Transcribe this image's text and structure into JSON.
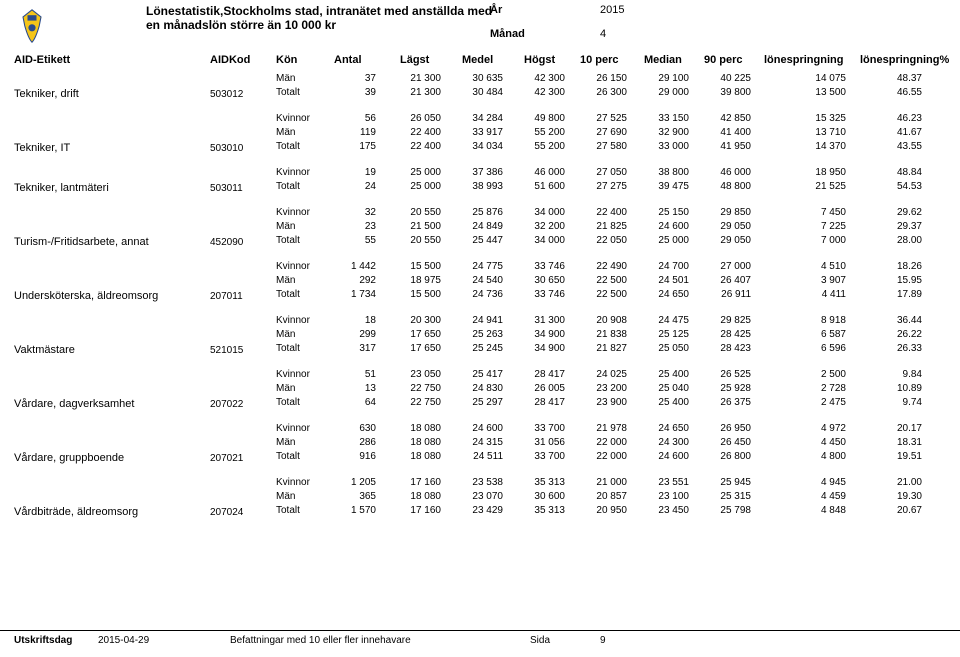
{
  "header": {
    "title_line1": "Lönestatistik,Stockholms stad, intranätet med anställda med",
    "title_line2": "en månadslön större än 10 000 kr",
    "year_label": "År",
    "year_value": "2015",
    "month_label": "Månad",
    "month_value": "4"
  },
  "columns": {
    "aid_etikett": "AID-Etikett",
    "aidkod": "AIDKod",
    "kon": "Kön",
    "antal": "Antal",
    "lagst": "Lägst",
    "medel": "Medel",
    "hogst": "Högst",
    "p10": "10 perc",
    "median": "Median",
    "p90": "90 perc",
    "lonespringning": "lönespringning",
    "lonespringning_pct": "lönespringning%"
  },
  "groups": [
    {
      "title": "Tekniker, drift",
      "aidkod": "503012",
      "rows": [
        {
          "kon": "Män",
          "antal": "37",
          "lagst": "21 300",
          "medel": "30 635",
          "hogst": "42 300",
          "p10": "26 150",
          "median": "29 100",
          "p90": "40 225",
          "lonesp": "14 075",
          "pct": "48.37"
        },
        {
          "kon": "Totalt",
          "antal": "39",
          "lagst": "21 300",
          "medel": "30 484",
          "hogst": "42 300",
          "p10": "26 300",
          "median": "29 000",
          "p90": "39 800",
          "lonesp": "13 500",
          "pct": "46.55"
        }
      ]
    },
    {
      "title": "Tekniker, IT",
      "aidkod": "503010",
      "rows": [
        {
          "kon": "Kvinnor",
          "antal": "56",
          "lagst": "26 050",
          "medel": "34 284",
          "hogst": "49 800",
          "p10": "27 525",
          "median": "33 150",
          "p90": "42 850",
          "lonesp": "15 325",
          "pct": "46.23"
        },
        {
          "kon": "Män",
          "antal": "119",
          "lagst": "22 400",
          "medel": "33 917",
          "hogst": "55 200",
          "p10": "27 690",
          "median": "32 900",
          "p90": "41 400",
          "lonesp": "13 710",
          "pct": "41.67"
        },
        {
          "kon": "Totalt",
          "antal": "175",
          "lagst": "22 400",
          "medel": "34 034",
          "hogst": "55 200",
          "p10": "27 580",
          "median": "33 000",
          "p90": "41 950",
          "lonesp": "14 370",
          "pct": "43.55"
        }
      ]
    },
    {
      "title": "Tekniker, lantmäteri",
      "aidkod": "503011",
      "rows": [
        {
          "kon": "Kvinnor",
          "antal": "19",
          "lagst": "25 000",
          "medel": "37 386",
          "hogst": "46 000",
          "p10": "27 050",
          "median": "38 800",
          "p90": "46 000",
          "lonesp": "18 950",
          "pct": "48.84"
        },
        {
          "kon": "Totalt",
          "antal": "24",
          "lagst": "25 000",
          "medel": "38 993",
          "hogst": "51 600",
          "p10": "27 275",
          "median": "39 475",
          "p90": "48 800",
          "lonesp": "21 525",
          "pct": "54.53"
        }
      ]
    },
    {
      "title": "Turism-/Fritidsarbete, annat",
      "aidkod": "452090",
      "rows": [
        {
          "kon": "Kvinnor",
          "antal": "32",
          "lagst": "20 550",
          "medel": "25 876",
          "hogst": "34 000",
          "p10": "22 400",
          "median": "25 150",
          "p90": "29 850",
          "lonesp": "7 450",
          "pct": "29.62"
        },
        {
          "kon": "Män",
          "antal": "23",
          "lagst": "21 500",
          "medel": "24 849",
          "hogst": "32 200",
          "p10": "21 825",
          "median": "24 600",
          "p90": "29 050",
          "lonesp": "7 225",
          "pct": "29.37"
        },
        {
          "kon": "Totalt",
          "antal": "55",
          "lagst": "20 550",
          "medel": "25 447",
          "hogst": "34 000",
          "p10": "22 050",
          "median": "25 000",
          "p90": "29 050",
          "lonesp": "7 000",
          "pct": "28.00"
        }
      ]
    },
    {
      "title": "Undersköterska, äldreomsorg",
      "aidkod": "207011",
      "rows": [
        {
          "kon": "Kvinnor",
          "antal": "1 442",
          "lagst": "15 500",
          "medel": "24 775",
          "hogst": "33 746",
          "p10": "22 490",
          "median": "24 700",
          "p90": "27 000",
          "lonesp": "4 510",
          "pct": "18.26"
        },
        {
          "kon": "Män",
          "antal": "292",
          "lagst": "18 975",
          "medel": "24 540",
          "hogst": "30 650",
          "p10": "22 500",
          "median": "24 501",
          "p90": "26 407",
          "lonesp": "3 907",
          "pct": "15.95"
        },
        {
          "kon": "Totalt",
          "antal": "1 734",
          "lagst": "15 500",
          "medel": "24 736",
          "hogst": "33 746",
          "p10": "22 500",
          "median": "24 650",
          "p90": "26 911",
          "lonesp": "4 411",
          "pct": "17.89"
        }
      ]
    },
    {
      "title": "Vaktmästare",
      "aidkod": "521015",
      "rows": [
        {
          "kon": "Kvinnor",
          "antal": "18",
          "lagst": "20 300",
          "medel": "24 941",
          "hogst": "31 300",
          "p10": "20 908",
          "median": "24 475",
          "p90": "29 825",
          "lonesp": "8 918",
          "pct": "36.44"
        },
        {
          "kon": "Män",
          "antal": "299",
          "lagst": "17 650",
          "medel": "25 263",
          "hogst": "34 900",
          "p10": "21 838",
          "median": "25 125",
          "p90": "28 425",
          "lonesp": "6 587",
          "pct": "26.22"
        },
        {
          "kon": "Totalt",
          "antal": "317",
          "lagst": "17 650",
          "medel": "25 245",
          "hogst": "34 900",
          "p10": "21 827",
          "median": "25 050",
          "p90": "28 423",
          "lonesp": "6 596",
          "pct": "26.33"
        }
      ]
    },
    {
      "title": "Vårdare, dagverksamhet",
      "aidkod": "207022",
      "rows": [
        {
          "kon": "Kvinnor",
          "antal": "51",
          "lagst": "23 050",
          "medel": "25 417",
          "hogst": "28 417",
          "p10": "24 025",
          "median": "25 400",
          "p90": "26 525",
          "lonesp": "2 500",
          "pct": "9.84"
        },
        {
          "kon": "Män",
          "antal": "13",
          "lagst": "22 750",
          "medel": "24 830",
          "hogst": "26 005",
          "p10": "23 200",
          "median": "25 040",
          "p90": "25 928",
          "lonesp": "2 728",
          "pct": "10.89"
        },
        {
          "kon": "Totalt",
          "antal": "64",
          "lagst": "22 750",
          "medel": "25 297",
          "hogst": "28 417",
          "p10": "23 900",
          "median": "25 400",
          "p90": "26 375",
          "lonesp": "2 475",
          "pct": "9.74"
        }
      ]
    },
    {
      "title": "Vårdare, gruppboende",
      "aidkod": "207021",
      "rows": [
        {
          "kon": "Kvinnor",
          "antal": "630",
          "lagst": "18 080",
          "medel": "24 600",
          "hogst": "33 700",
          "p10": "21 978",
          "median": "24 650",
          "p90": "26 950",
          "lonesp": "4 972",
          "pct": "20.17"
        },
        {
          "kon": "Män",
          "antal": "286",
          "lagst": "18 080",
          "medel": "24 315",
          "hogst": "31 056",
          "p10": "22 000",
          "median": "24 300",
          "p90": "26 450",
          "lonesp": "4 450",
          "pct": "18.31"
        },
        {
          "kon": "Totalt",
          "antal": "916",
          "lagst": "18 080",
          "medel": "24 511",
          "hogst": "33 700",
          "p10": "22 000",
          "median": "24 600",
          "p90": "26 800",
          "lonesp": "4 800",
          "pct": "19.51"
        }
      ]
    },
    {
      "title": "Vårdbiträde, äldreomsorg",
      "aidkod": "207024",
      "rows": [
        {
          "kon": "Kvinnor",
          "antal": "1 205",
          "lagst": "17 160",
          "medel": "23 538",
          "hogst": "35 313",
          "p10": "21 000",
          "median": "23 551",
          "p90": "25 945",
          "lonesp": "4 945",
          "pct": "21.00"
        },
        {
          "kon": "Män",
          "antal": "365",
          "lagst": "18 080",
          "medel": "23 070",
          "hogst": "30 600",
          "p10": "20 857",
          "median": "23 100",
          "p90": "25 315",
          "lonesp": "4 459",
          "pct": "19.30"
        },
        {
          "kon": "Totalt",
          "antal": "1 570",
          "lagst": "17 160",
          "medel": "23 429",
          "hogst": "35 313",
          "p10": "20 950",
          "median": "23 450",
          "p90": "25 798",
          "lonesp": "4 848",
          "pct": "20.67"
        }
      ]
    }
  ],
  "footer": {
    "utskriftsdag_label": "Utskriftsdag",
    "utskriftsdag_value": "2015-04-29",
    "middle_text": "Befattningar med 10 eller fler innehavare",
    "sida_label": "Sida",
    "sida_value": "9"
  },
  "style": {
    "background": "#ffffff",
    "text_color": "#000000",
    "logo_yellow": "#f5c518",
    "logo_blue": "#2a4b8d"
  }
}
